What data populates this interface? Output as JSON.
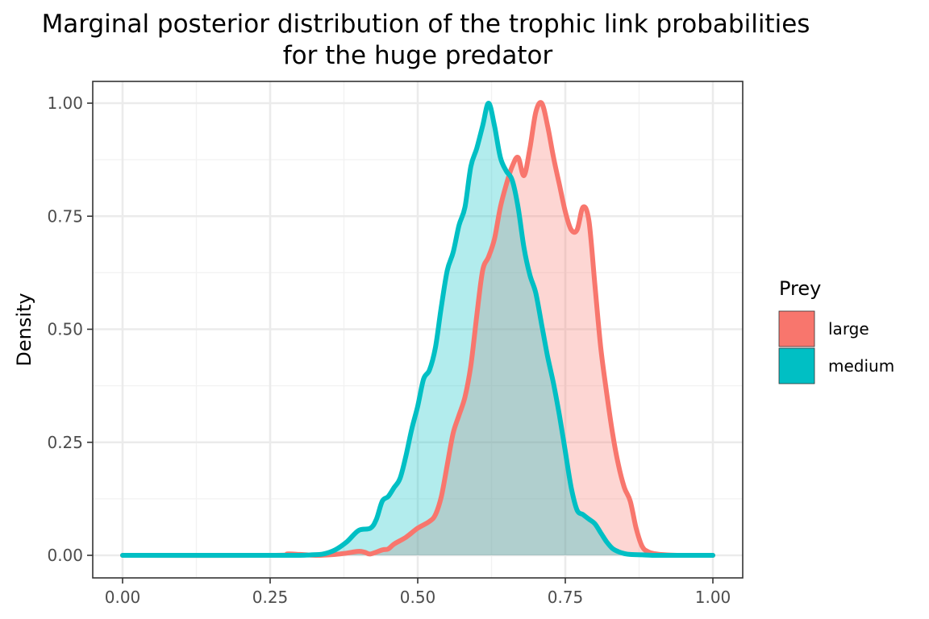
{
  "chart_data": {
    "type": "area",
    "title": [
      "Marginal posterior distribution of the trophic link probabilities",
      "for the huge predator"
    ],
    "xlabel": "",
    "ylabel": "Density",
    "xlim": [
      0,
      1
    ],
    "ylim": [
      0,
      1
    ],
    "x_ticks": [
      "0.00",
      "0.25",
      "0.50",
      "0.75",
      "1.00"
    ],
    "y_ticks": [
      "0.00",
      "0.25",
      "0.50",
      "0.75",
      "1.00"
    ],
    "grid": true,
    "legend": {
      "title": "Prey",
      "position": "right"
    },
    "series": [
      {
        "name": "large",
        "color": "#F8766D",
        "x": [
          0.0,
          0.25,
          0.28,
          0.3,
          0.33,
          0.36,
          0.38,
          0.4,
          0.41,
          0.42,
          0.44,
          0.45,
          0.46,
          0.48,
          0.5,
          0.52,
          0.53,
          0.54,
          0.55,
          0.56,
          0.57,
          0.58,
          0.59,
          0.6,
          0.61,
          0.62,
          0.63,
          0.64,
          0.65,
          0.66,
          0.67,
          0.68,
          0.69,
          0.7,
          0.71,
          0.72,
          0.73,
          0.74,
          0.75,
          0.76,
          0.77,
          0.78,
          0.79,
          0.8,
          0.81,
          0.82,
          0.83,
          0.84,
          0.85,
          0.86,
          0.87,
          0.88,
          0.89,
          0.9,
          0.92,
          0.94,
          1.0
        ],
        "y": [
          0.0,
          0.0,
          0.003,
          0.002,
          0.0,
          0.002,
          0.005,
          0.009,
          0.007,
          0.003,
          0.012,
          0.014,
          0.025,
          0.04,
          0.06,
          0.075,
          0.09,
          0.13,
          0.2,
          0.27,
          0.31,
          0.35,
          0.42,
          0.53,
          0.63,
          0.66,
          0.7,
          0.77,
          0.82,
          0.86,
          0.88,
          0.84,
          0.9,
          0.98,
          1.0,
          0.95,
          0.88,
          0.82,
          0.76,
          0.72,
          0.72,
          0.77,
          0.74,
          0.6,
          0.46,
          0.36,
          0.27,
          0.2,
          0.15,
          0.12,
          0.06,
          0.02,
          0.008,
          0.004,
          0.001,
          0.0,
          0.0
        ]
      },
      {
        "name": "medium",
        "color": "#00BFC4",
        "x": [
          0.0,
          0.25,
          0.3,
          0.32,
          0.34,
          0.36,
          0.38,
          0.4,
          0.42,
          0.43,
          0.44,
          0.45,
          0.46,
          0.47,
          0.48,
          0.49,
          0.5,
          0.51,
          0.52,
          0.53,
          0.54,
          0.55,
          0.56,
          0.57,
          0.58,
          0.59,
          0.6,
          0.61,
          0.62,
          0.63,
          0.64,
          0.65,
          0.66,
          0.67,
          0.68,
          0.69,
          0.7,
          0.71,
          0.72,
          0.73,
          0.74,
          0.75,
          0.76,
          0.77,
          0.78,
          0.79,
          0.8,
          0.81,
          0.82,
          0.83,
          0.84,
          0.85,
          0.86,
          0.88,
          0.9,
          0.92,
          1.0
        ],
        "y": [
          0.0,
          0.0,
          0.0,
          0.001,
          0.003,
          0.012,
          0.03,
          0.055,
          0.06,
          0.08,
          0.12,
          0.13,
          0.15,
          0.17,
          0.22,
          0.28,
          0.33,
          0.39,
          0.41,
          0.46,
          0.55,
          0.63,
          0.67,
          0.73,
          0.77,
          0.86,
          0.9,
          0.95,
          1.0,
          0.95,
          0.88,
          0.85,
          0.83,
          0.77,
          0.68,
          0.62,
          0.58,
          0.51,
          0.44,
          0.38,
          0.31,
          0.23,
          0.15,
          0.1,
          0.09,
          0.08,
          0.07,
          0.05,
          0.03,
          0.015,
          0.008,
          0.004,
          0.002,
          0.001,
          0.0,
          0.0,
          0.0
        ]
      }
    ]
  }
}
